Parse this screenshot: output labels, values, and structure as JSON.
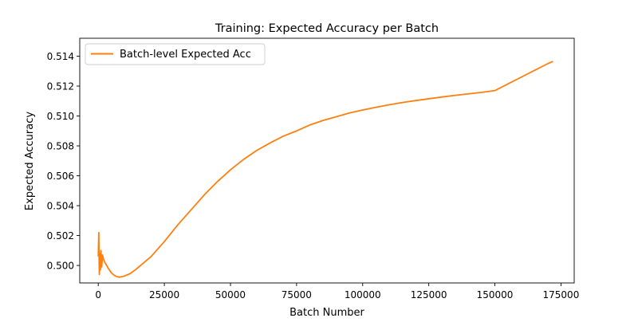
{
  "chart_data": {
    "type": "line",
    "title": "Training: Expected Accuracy per Batch",
    "xlabel": "Batch Number",
    "ylabel": "Expected Accuracy",
    "xlim": [
      -7000,
      180000
    ],
    "ylim": [
      0.49883,
      0.5152
    ],
    "xticks": [
      0,
      25000,
      50000,
      75000,
      100000,
      125000,
      150000,
      175000
    ],
    "xtick_labels": [
      "0",
      "25000",
      "50000",
      "75000",
      "100000",
      "125000",
      "150000",
      "175000"
    ],
    "yticks": [
      0.5,
      0.502,
      0.504,
      0.506,
      0.508,
      0.51,
      0.512,
      0.514
    ],
    "ytick_labels": [
      "0.500",
      "0.502",
      "0.504",
      "0.506",
      "0.508",
      "0.510",
      "0.512",
      "0.514"
    ],
    "grid": false,
    "legend": "top-left",
    "series": [
      {
        "name": "Batch-level Expected Acc",
        "color": "#ff7f0e",
        "x": [
          0,
          200,
          400,
          600,
          800,
          1000,
          1300,
          1600,
          2000,
          2500,
          3000,
          3500,
          4000,
          5000,
          6000,
          7000,
          8000,
          9000,
          10000,
          12000,
          14000,
          16000,
          18000,
          20000,
          22000,
          25000,
          30000,
          35000,
          40000,
          45000,
          50000,
          55000,
          60000,
          65000,
          70000,
          75000,
          80000,
          85000,
          90000,
          95000,
          100000,
          105000,
          110000,
          115000,
          120000,
          125000,
          130000,
          135000,
          140000,
          145000,
          150000,
          155000,
          160000,
          165000,
          170000,
          172000
        ],
        "y": [
          0.5006,
          0.5022,
          0.4994,
          0.5008,
          0.4997,
          0.501,
          0.4999,
          0.5007,
          0.5004,
          0.5002,
          0.50005,
          0.4999,
          0.49975,
          0.4995,
          0.49935,
          0.49925,
          0.49922,
          0.49925,
          0.4993,
          0.49945,
          0.4997,
          0.5,
          0.5003,
          0.5006,
          0.501,
          0.5016,
          0.5027,
          0.5037,
          0.5047,
          0.5056,
          0.5064,
          0.5071,
          0.5077,
          0.5082,
          0.50865,
          0.509,
          0.5094,
          0.5097,
          0.50995,
          0.5102,
          0.5104,
          0.51058,
          0.51075,
          0.5109,
          0.51103,
          0.51115,
          0.51127,
          0.51138,
          0.51148,
          0.51158,
          0.5117,
          0.51215,
          0.5126,
          0.51305,
          0.5135,
          0.51365
        ]
      }
    ]
  }
}
